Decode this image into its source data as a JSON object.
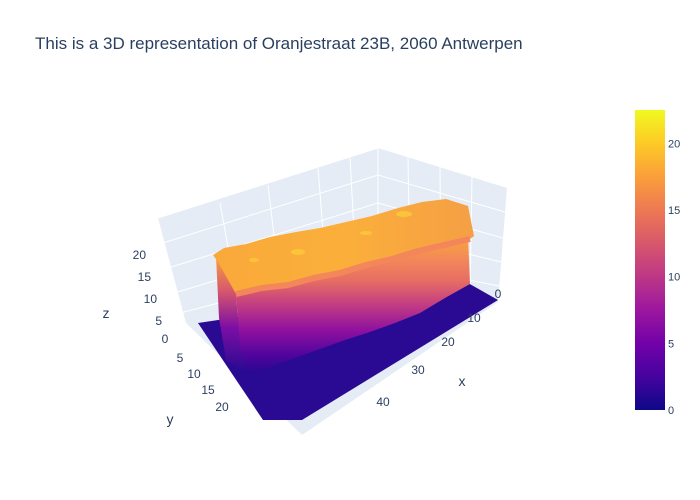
{
  "chart_data": {
    "type": "surface",
    "title": "This is a 3D representation of Oranjestraat 23B, 2060 Antwerpen",
    "xlabel": "x",
    "ylabel": "y",
    "zlabel": "z",
    "x_ticks": [
      "0",
      "10",
      "20",
      "30",
      "40"
    ],
    "y_ticks": [
      "0",
      "5",
      "10",
      "15",
      "20"
    ],
    "z_ticks": [
      "5",
      "10",
      "15",
      "20"
    ],
    "xlim": [
      0,
      47
    ],
    "ylim": [
      0,
      24
    ],
    "zlim": [
      0,
      23
    ],
    "colorscale": "plasma",
    "colorbar": {
      "ticks": [
        "0",
        "5",
        "10",
        "15",
        "20"
      ],
      "tick_values": [
        0,
        5,
        10,
        15,
        20
      ],
      "range": [
        0,
        22.5
      ]
    },
    "surface": {
      "ground_level": 0,
      "building": {
        "x_range": [
          5,
          45
        ],
        "y_range": [
          3,
          15
        ],
        "roof_height_range": [
          16,
          22
        ],
        "typical_roof_height": 19
      }
    }
  },
  "colors": {
    "plot_background": "#e5ecf6",
    "grid": "#ffffff",
    "text": "#2a3f5f",
    "ground": "#2a0a93",
    "roof": "#f9a739"
  }
}
